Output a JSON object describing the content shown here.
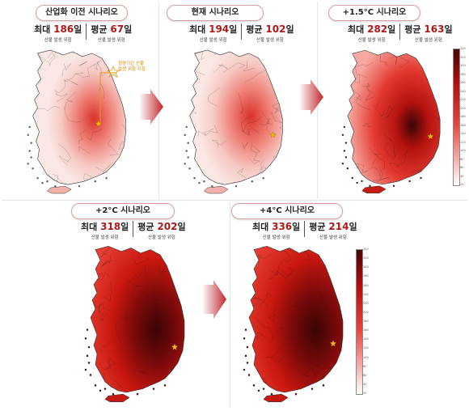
{
  "panels": [
    {
      "title": "산업화 이전 시나리오",
      "max_label": "최대",
      "max_value": "186",
      "avg_label": "평균",
      "avg_value": "67",
      "unit": "일",
      "max_sub": "산불 발생 위험",
      "avg_sub": "산불 발생 위험",
      "intensity": 0.28
    },
    {
      "title": "현재 시나리오",
      "max_label": "최대",
      "max_value": "194",
      "avg_label": "평균",
      "avg_value": "102",
      "unit": "일",
      "max_sub": "산불 발생 위험",
      "avg_sub": "산불 발생 위험",
      "intensity": 0.4
    },
    {
      "title": "+1.5°C 시나리오",
      "max_label": "최대",
      "max_value": "282",
      "avg_label": "평균",
      "avg_value": "163",
      "unit": "일",
      "max_sub": "산불 발생 위험",
      "avg_sub": "산불 발생 위험",
      "intensity": 0.62
    },
    {
      "title": "+2°C 시나리오",
      "max_label": "최대",
      "max_value": "318",
      "avg_label": "평균",
      "avg_value": "202",
      "unit": "일",
      "max_sub": "산불 발생 위험",
      "avg_sub": "산불 발생 위험",
      "intensity": 0.8
    },
    {
      "title": "+4°C 시나리오",
      "max_label": "최대",
      "max_value": "336",
      "avg_label": "평균",
      "avg_value": "214",
      "unit": "일",
      "max_sub": "산불 발생 위험",
      "avg_sub": "산불 발생 위험",
      "intensity": 0.86
    }
  ],
  "annotation": {
    "line1": "청량기간 산불",
    "line2": "발생 위험 지점"
  },
  "legend": {
    "ticks": [
      "340",
      "320",
      "300",
      "280",
      "260",
      "240",
      "220",
      "200",
      "180",
      "160",
      "140",
      "120",
      "100",
      "80",
      "60",
      "40",
      "20"
    ],
    "colors": {
      "low": "#ffffff",
      "mid": "#e8443a",
      "high": "#b30d0d",
      "top": "#4a0505"
    }
  }
}
